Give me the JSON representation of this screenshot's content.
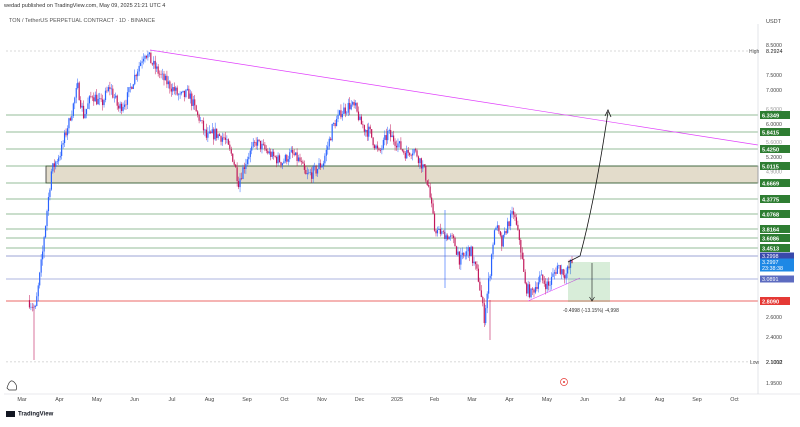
{
  "header": {
    "publish_line": "wedad published on TradingView.com, May 09, 2025 21:21 UTC 4",
    "symbol_line": "TON / TetherUS PERPETUAL CONTRACT · 1D · BINANCE",
    "currency": "USDT"
  },
  "footer": {
    "brand": "TradingView"
  },
  "chart_data": {
    "type": "candlestick",
    "xlabels": [
      "Mar",
      "Apr",
      "May",
      "Jun",
      "Jul",
      "Aug",
      "Sep",
      "Oct",
      "Nov",
      "Dec",
      "2025",
      "Feb",
      "Mar",
      "Apr",
      "May",
      "Jun",
      "Jul",
      "Aug",
      "Sep",
      "Oct"
    ],
    "y_ticks": [
      "8.5000",
      "7.5000",
      "7.0000",
      "6.0000",
      "5.2000",
      "2.6000",
      "2.4000",
      "2.1000",
      "1.9500"
    ],
    "y_ticks_faint": [
      "6.5000",
      "5.6000",
      "4.9000"
    ],
    "high_label": "High",
    "high_value": "8.2924",
    "low_label": "Low",
    "low_value": "2.1012",
    "zone": {
      "upper": "5.0115",
      "lower": "4.6669"
    },
    "resistance_levels": [
      {
        "value": "6.3349",
        "color": "#2e7d32"
      },
      {
        "value": "5.8415",
        "color": "#2e7d32"
      },
      {
        "value": "5.4250",
        "color": "#2e7d32"
      },
      {
        "value": "5.0115",
        "color": "#2e7d32"
      },
      {
        "value": "4.6669",
        "color": "#2e7d32"
      },
      {
        "value": "4.3775",
        "color": "#2e7d32"
      },
      {
        "value": "4.0768",
        "color": "#2e7d32"
      },
      {
        "value": "3.8164",
        "color": "#2e7d32"
      },
      {
        "value": "3.6086",
        "color": "#2e7d32"
      },
      {
        "value": "3.4513",
        "color": "#2e7d32"
      }
    ],
    "price_levels": [
      {
        "value": "3.2998",
        "color": "#3949ab"
      },
      {
        "value": "3.2997",
        "color": "#1e88e5"
      },
      {
        "value": "23:38:38",
        "color": "#1e88e5"
      },
      {
        "value": "3.0891",
        "color": "#5c6bc0"
      }
    ],
    "support_level": {
      "value": "2.8090",
      "color": "#e53935"
    },
    "measure_label": "-0.4998 (-13.15%) -4,998",
    "up_color": "#2962ff",
    "down_color": "#c2185b",
    "trendline_color": "#e040fb"
  }
}
